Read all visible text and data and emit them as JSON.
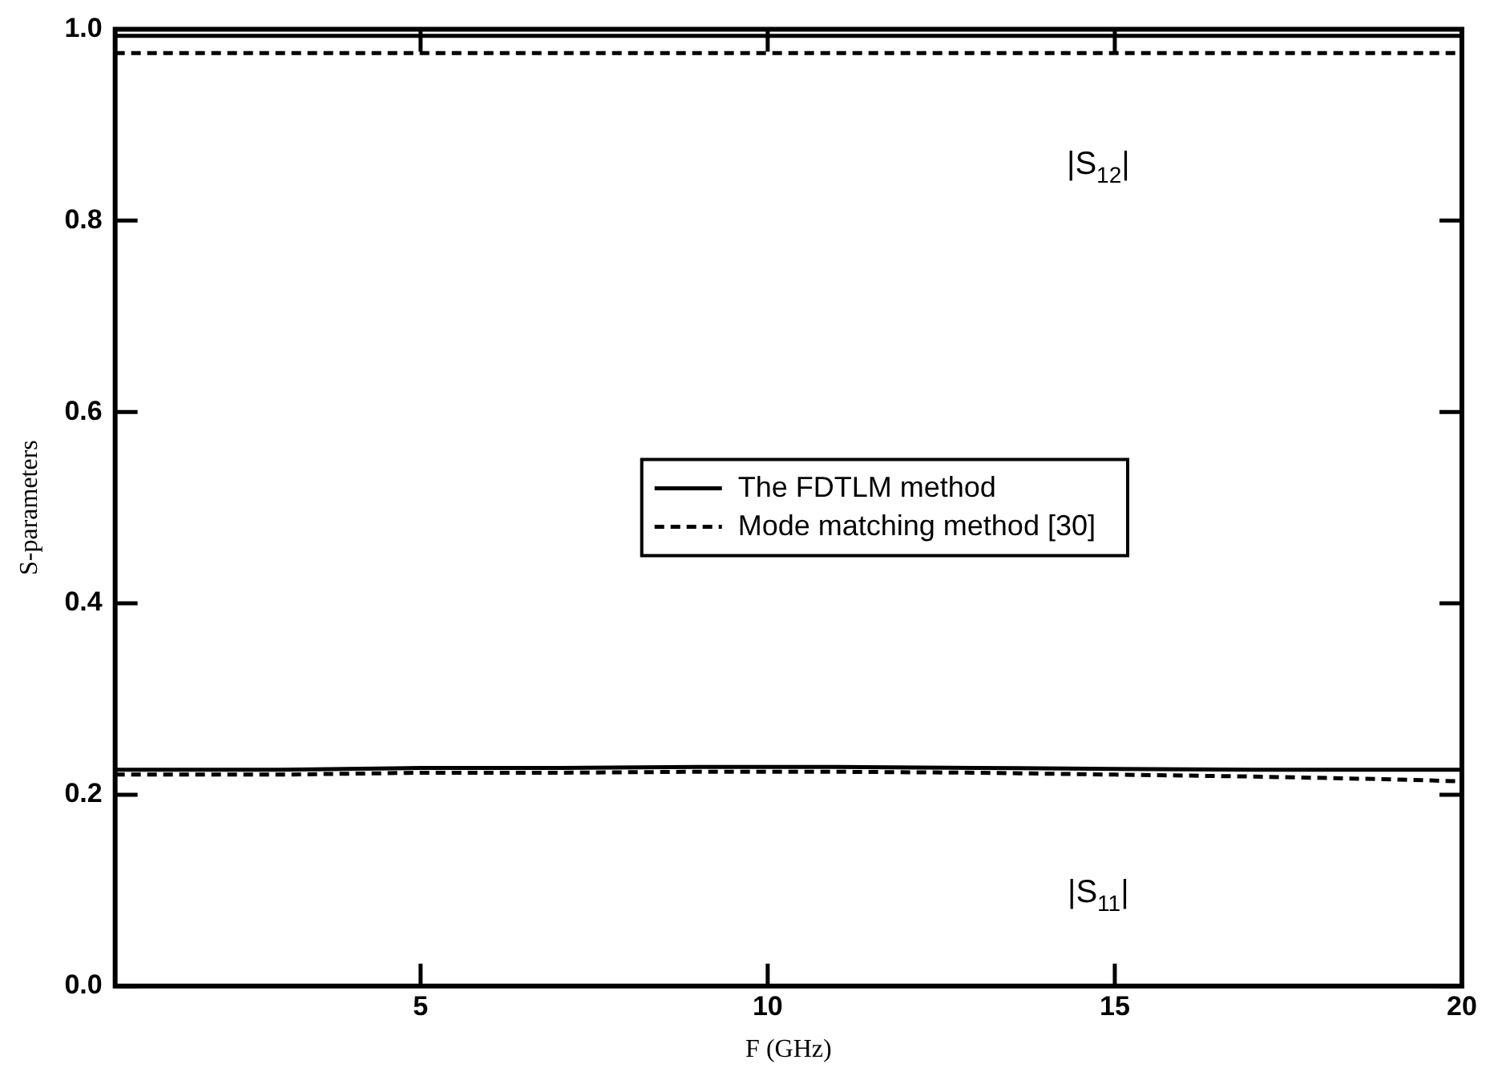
{
  "chart_data": {
    "type": "line",
    "xlabel": "F (GHz)",
    "ylabel": "S-parameters",
    "x": [
      0.6,
      3,
      5,
      7,
      9,
      11,
      13,
      15,
      17,
      19,
      20
    ],
    "series": [
      {
        "name": "The FDTLM method",
        "color": "#000000",
        "line_style": "solid",
        "values": [
          0.993,
          0.993,
          0.993,
          0.993,
          0.993,
          0.993,
          0.993,
          0.993,
          0.993,
          0.993,
          0.993
        ]
      },
      {
        "name": "Mode matching method [30]",
        "color": "#000000",
        "line_style": "dashed",
        "values": [
          0.975,
          0.975,
          0.975,
          0.975,
          0.975,
          0.975,
          0.975,
          0.975,
          0.975,
          0.975,
          0.975
        ]
      },
      {
        "color": "#000000",
        "line_style": "solid",
        "values": [
          0.226,
          0.226,
          0.228,
          0.228,
          0.229,
          0.229,
          0.228,
          0.227,
          0.226,
          0.226,
          0.226
        ]
      },
      {
        "color": "#000000",
        "line_style": "dashed",
        "values": [
          0.221,
          0.221,
          0.223,
          0.223,
          0.224,
          0.224,
          0.223,
          0.221,
          0.219,
          0.216,
          0.214
        ]
      }
    ],
    "xlim": [
      0.6,
      20
    ],
    "xticks": [
      5,
      10,
      15,
      20
    ],
    "ylim": [
      0,
      1.0
    ],
    "yticks": [
      {
        "value": 0,
        "label": "0.0"
      },
      0.2,
      0.4,
      0.6,
      0.8,
      {
        "value": 1,
        "label": "1.0"
      }
    ],
    "legend": "center",
    "grid": false,
    "marker": "none",
    "annotations": [
      "|S$_{12}$|",
      "|S$_{11}$|"
    ]
  }
}
